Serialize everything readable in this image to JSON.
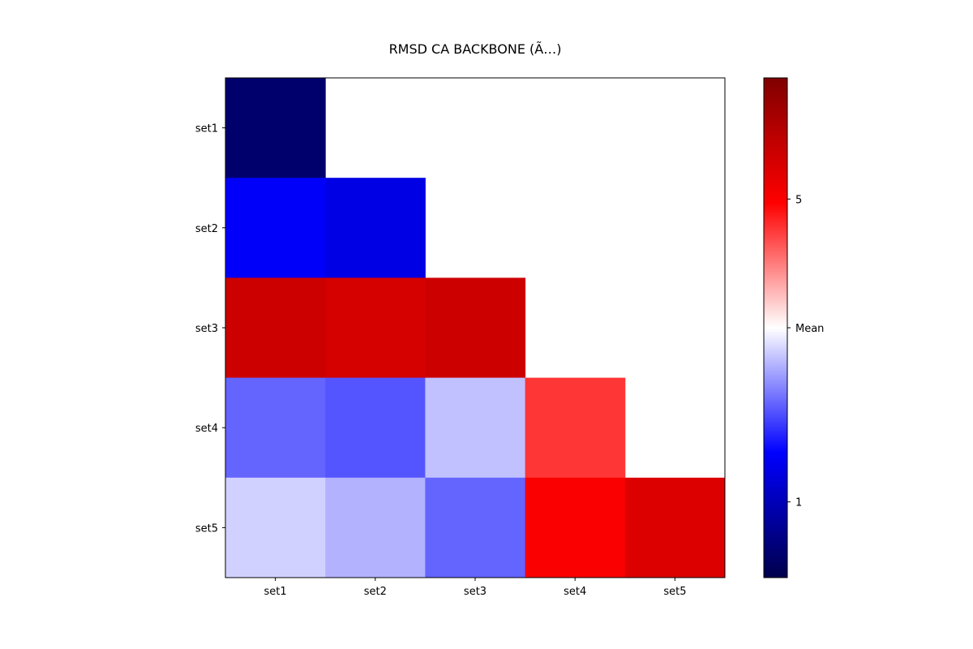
{
  "chart_data": {
    "type": "heatmap",
    "title": "RMSD CA BACKBONE (Ã…)",
    "xlabel": "",
    "ylabel": "",
    "rows": [
      "set1",
      "set2",
      "set3",
      "set4",
      "set5"
    ],
    "cols": [
      "set1",
      "set2",
      "set3",
      "set4",
      "set5"
    ],
    "matrix": [
      [
        0.3,
        null,
        null,
        null,
        null
      ],
      [
        1.6,
        1.4,
        null,
        null,
        null
      ],
      [
        5.6,
        5.5,
        5.6,
        null,
        null
      ],
      [
        2.3,
        2.2,
        2.9,
        4.6,
        null
      ],
      [
        3.0,
        2.8,
        2.3,
        5.0,
        5.4
      ]
    ],
    "colorbar": {
      "colormap": "seismic",
      "range": [
        0.0,
        6.6
      ],
      "ticks": [
        {
          "value": 1.0,
          "label": "1"
        },
        {
          "value": 3.3,
          "label": "Mean"
        },
        {
          "value": 5.0,
          "label": "5"
        }
      ]
    },
    "grid": false
  }
}
